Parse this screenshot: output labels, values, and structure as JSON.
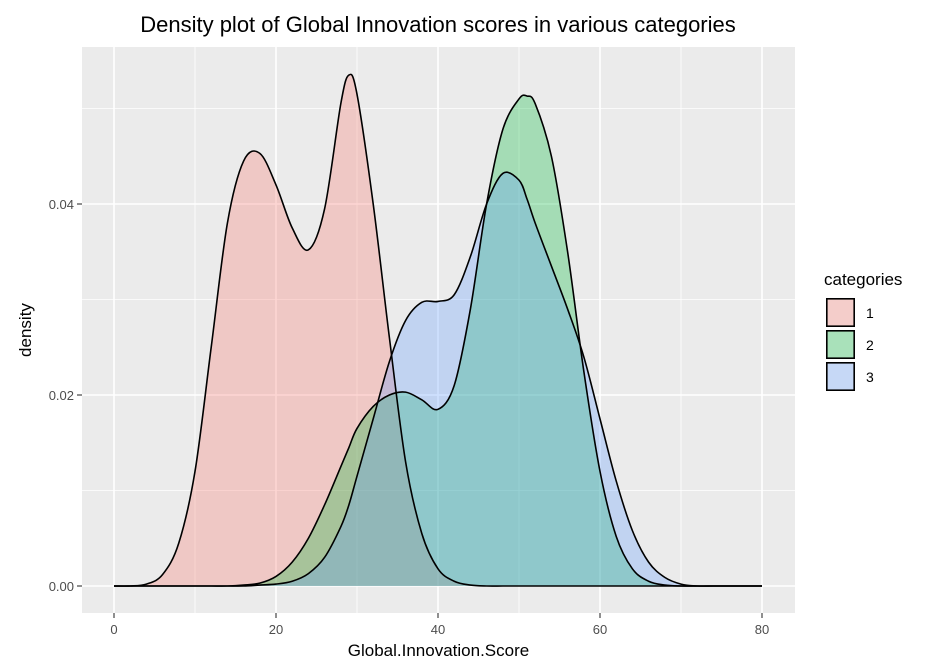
{
  "chart_data": {
    "type": "area",
    "title": "Density plot of Global Innovation scores in various categories",
    "xlabel": "Global.Innovation.Score",
    "ylabel": "density",
    "xlim": [
      0,
      80
    ],
    "ylim": [
      0,
      0.054
    ],
    "x_ticks": [
      0,
      20,
      40,
      60,
      80
    ],
    "x_tick_labels": [
      "0",
      "20",
      "40",
      "60",
      "80"
    ],
    "y_ticks": [
      0.0,
      0.02,
      0.04
    ],
    "y_tick_labels": [
      "0.00",
      "0.02",
      "0.04"
    ],
    "grid": true,
    "legend": {
      "title": "categories",
      "position": "right"
    },
    "x": [
      0,
      2,
      4,
      6,
      8,
      10,
      12,
      14,
      16,
      18,
      20,
      22,
      24,
      26,
      28,
      29,
      30,
      32,
      34,
      36,
      38,
      40,
      42,
      44,
      46,
      48,
      50,
      51,
      52,
      54,
      56,
      58,
      60,
      62,
      64,
      66,
      68,
      70,
      72,
      74,
      76,
      78,
      80
    ],
    "series": [
      {
        "name": "1",
        "color": "#f8766d",
        "values": [
          0.0,
          0.0,
          0.0002,
          0.0012,
          0.0045,
          0.012,
          0.025,
          0.038,
          0.0445,
          0.0453,
          0.042,
          0.0375,
          0.0352,
          0.0395,
          0.0505,
          0.0535,
          0.0515,
          0.04,
          0.026,
          0.013,
          0.0055,
          0.0018,
          0.0005,
          0.0001,
          0.0,
          0.0,
          0.0,
          0.0,
          0.0,
          0.0,
          0.0,
          0.0,
          0.0,
          0.0,
          0.0,
          0.0,
          0.0,
          0.0,
          0.0,
          0.0,
          0.0,
          0.0,
          0.0
        ]
      },
      {
        "name": "2",
        "color": "#00ba38",
        "values": [
          0.0,
          0.0,
          0.0,
          0.0,
          0.0,
          0.0,
          0.0,
          0.0,
          0.0001,
          0.0003,
          0.001,
          0.0025,
          0.005,
          0.0085,
          0.0125,
          0.0145,
          0.0165,
          0.0188,
          0.02,
          0.0203,
          0.0195,
          0.0185,
          0.021,
          0.029,
          0.04,
          0.0478,
          0.051,
          0.0513,
          0.0505,
          0.045,
          0.035,
          0.0225,
          0.012,
          0.0052,
          0.0018,
          0.0005,
          0.0001,
          0.0,
          0.0,
          0.0,
          0.0,
          0.0,
          0.0
        ]
      },
      {
        "name": "3",
        "color": "#619cff",
        "values": [
          0.0,
          0.0,
          0.0,
          0.0,
          0.0,
          0.0,
          0.0,
          0.0,
          0.0,
          0.0001,
          0.0002,
          0.0005,
          0.0013,
          0.003,
          0.0062,
          0.0085,
          0.0115,
          0.0175,
          0.0235,
          0.0278,
          0.0297,
          0.0298,
          0.0305,
          0.0345,
          0.04,
          0.0432,
          0.0425,
          0.0405,
          0.038,
          0.0335,
          0.029,
          0.024,
          0.0175,
          0.011,
          0.0058,
          0.0025,
          0.0009,
          0.0002,
          0.0,
          0.0,
          0.0,
          0.0,
          0.0
        ]
      }
    ]
  }
}
